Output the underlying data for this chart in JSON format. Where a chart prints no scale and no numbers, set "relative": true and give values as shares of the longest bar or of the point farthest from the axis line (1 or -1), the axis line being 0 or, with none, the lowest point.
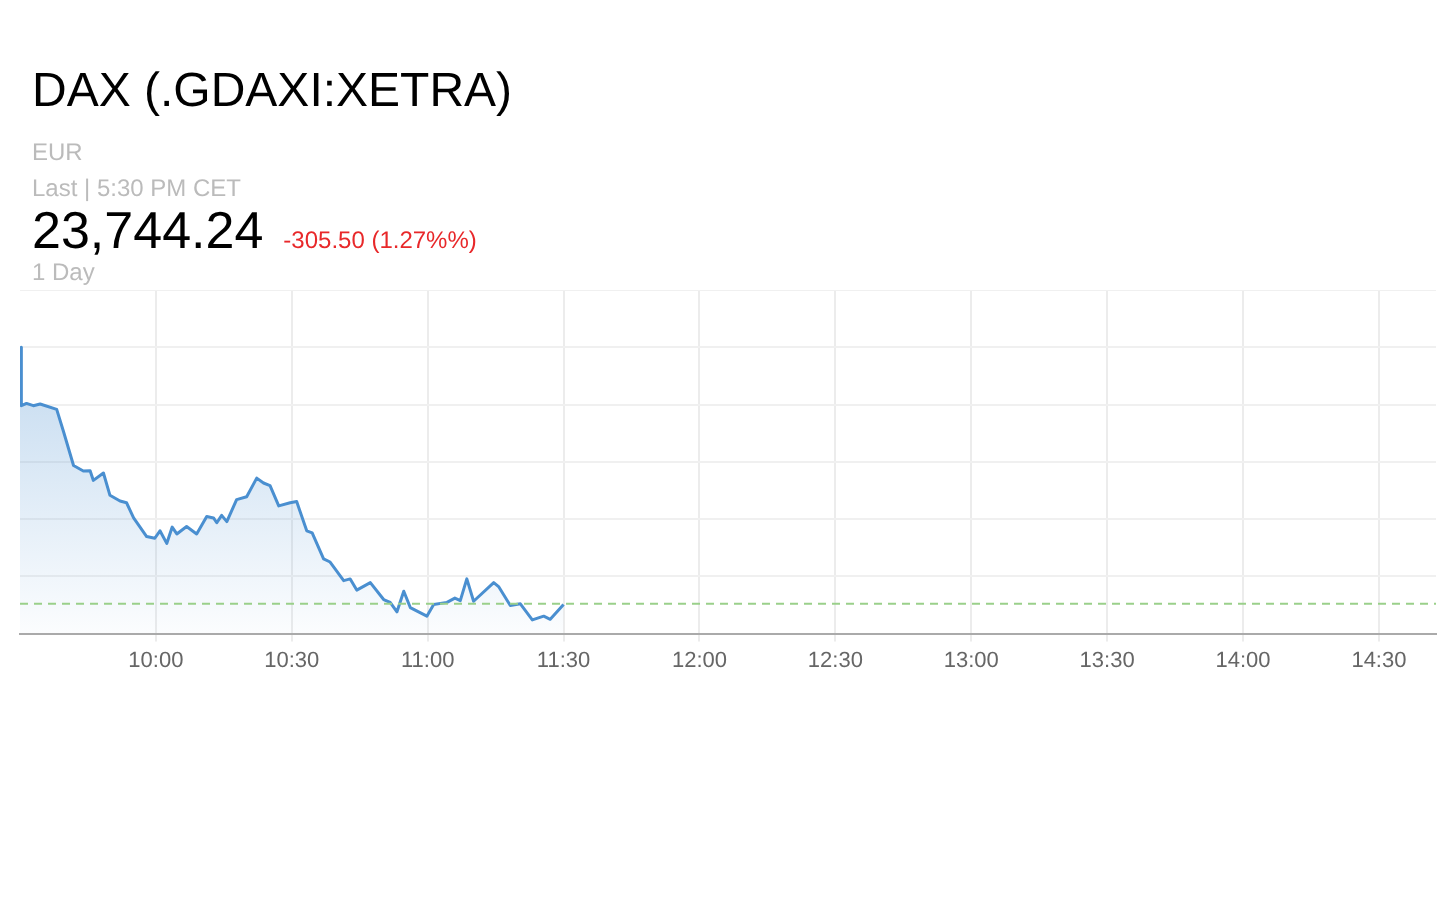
{
  "chart_data": {
    "type": "area",
    "title": "DAX (.GDAXI:XETRA)",
    "annotations": [
      "EUR",
      "Last | 5:30 PM CET",
      "23,744.24",
      "-305.50 (1.27%%)",
      "1 Day"
    ],
    "relative": true,
    "series": [
      {
        "color": "#4a8fd0",
        "x": [
          9.5,
          9.505,
          9.524,
          9.549,
          9.574,
          9.635,
          9.66,
          9.697,
          9.733,
          9.758,
          9.77,
          9.807,
          9.831,
          9.868,
          9.892,
          9.918,
          9.966,
          9.996,
          10.015,
          10.04,
          10.06,
          10.077,
          10.113,
          10.15,
          10.187,
          10.212,
          10.224,
          10.242,
          10.261,
          10.297,
          10.334,
          10.371,
          10.396,
          10.42,
          10.452,
          10.494,
          10.518,
          10.555,
          10.575,
          10.617,
          10.641,
          10.691,
          10.715,
          10.739,
          10.789,
          10.838,
          10.862,
          10.887,
          10.912,
          10.936,
          10.997,
          11.022,
          11.071,
          11.1,
          11.12,
          11.144,
          11.169,
          11.243,
          11.262,
          11.304,
          11.341,
          11.385,
          11.427,
          11.451,
          11.5
        ],
        "values": [
          1.0,
          0.796,
          0.804,
          0.796,
          0.802,
          0.783,
          0.706,
          0.587,
          0.568,
          0.569,
          0.535,
          0.561,
          0.483,
          0.463,
          0.457,
          0.404,
          0.339,
          0.333,
          0.359,
          0.315,
          0.372,
          0.348,
          0.374,
          0.348,
          0.409,
          0.404,
          0.387,
          0.413,
          0.391,
          0.468,
          0.478,
          0.543,
          0.526,
          0.517,
          0.446,
          0.457,
          0.461,
          0.359,
          0.352,
          0.261,
          0.25,
          0.185,
          0.191,
          0.152,
          0.178,
          0.119,
          0.109,
          0.076,
          0.148,
          0.091,
          0.061,
          0.102,
          0.109,
          0.124,
          0.115,
          0.191,
          0.113,
          0.178,
          0.163,
          0.098,
          0.104,
          0.048,
          0.061,
          0.05,
          0.102
        ]
      }
    ],
    "xlim": [
      9.5,
      14.71
    ],
    "xticks": [
      {
        "value": 10,
        "label": "10:00"
      },
      {
        "value": 10.5,
        "label": "10:30"
      },
      {
        "value": 11,
        "label": "11:00"
      },
      {
        "value": 11.5,
        "label": "11:30"
      },
      {
        "value": 12,
        "label": "12:00"
      },
      {
        "value": 12.5,
        "label": "12:30"
      },
      {
        "value": 13,
        "label": "13:00"
      },
      {
        "value": 13.5,
        "label": "13:30"
      },
      {
        "value": 14,
        "label": "14:00"
      },
      {
        "value": 14.5,
        "label": "14:30"
      }
    ],
    "ref_lines": [
      {
        "axis": "y",
        "value": 0.104,
        "color": "#9ad08a",
        "line_style": "dashed"
      }
    ],
    "grid": true,
    "tick_labels": "x"
  }
}
